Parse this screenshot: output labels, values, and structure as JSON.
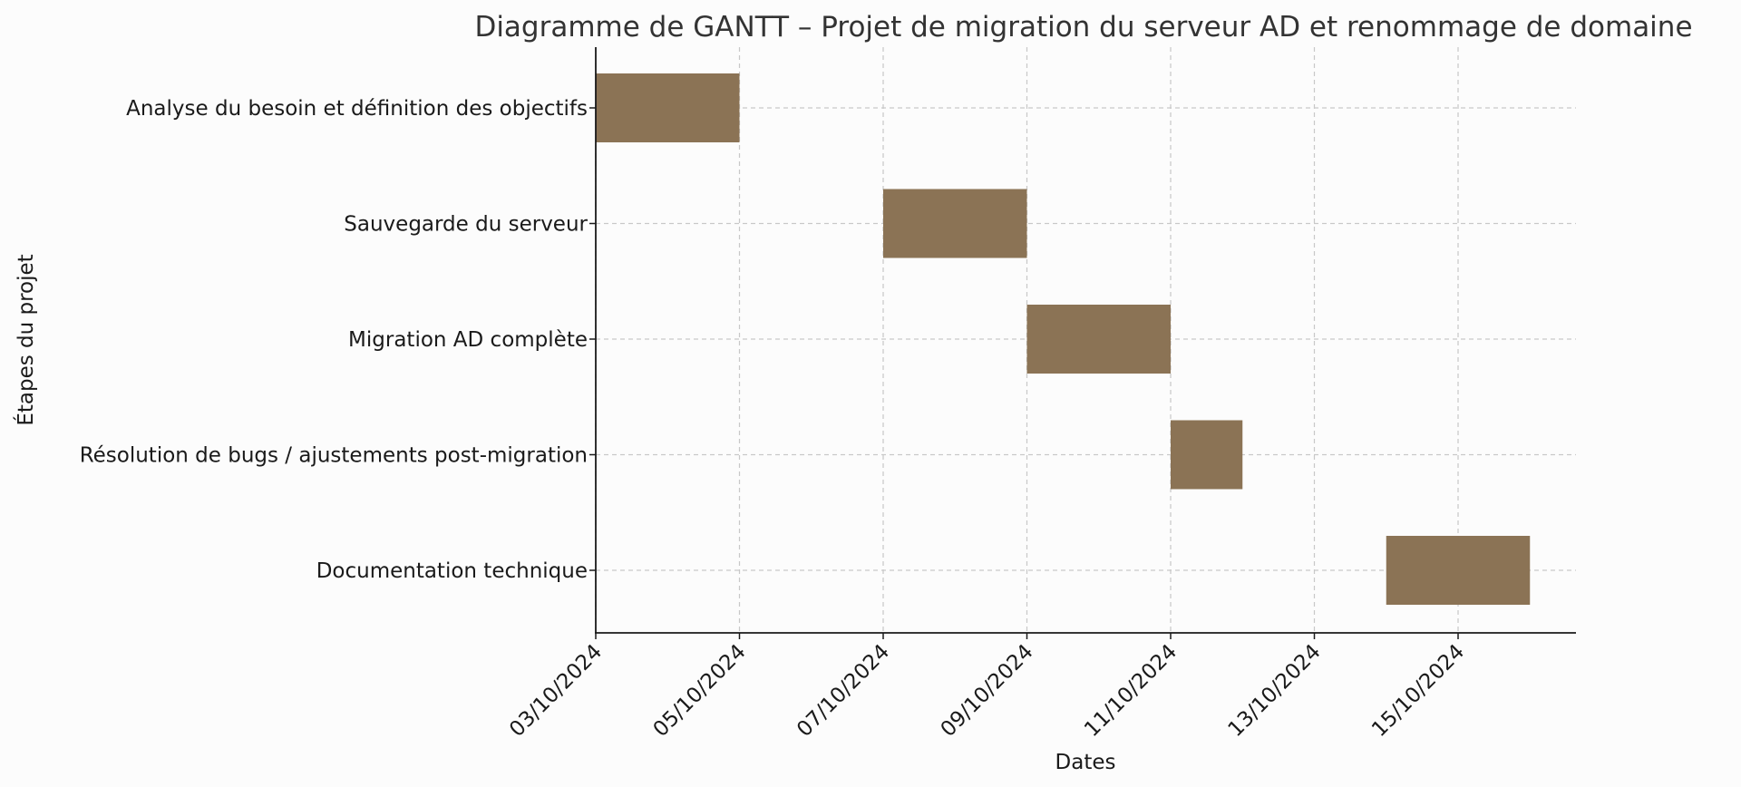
{
  "chart_data": {
    "type": "bar",
    "orientation": "horizontal",
    "title": "Diagramme de GANTT – Projet de migration du serveur AD et renommage de domaine",
    "xlabel": "Dates",
    "ylabel": "Étapes du projet",
    "categories": [
      "Analyse du besoin et définition des objectifs",
      "Sauvegarde du serveur",
      "Migration AD complète",
      "Résolution de bugs / ajustements post-migration",
      "Documentation technique"
    ],
    "tasks": [
      {
        "name": "Analyse du besoin et définition des objectifs",
        "start": "2024-10-03",
        "end": "2024-10-05"
      },
      {
        "name": "Sauvegarde du serveur",
        "start": "2024-10-07",
        "end": "2024-10-09"
      },
      {
        "name": "Migration AD complète",
        "start": "2024-10-09",
        "end": "2024-10-11"
      },
      {
        "name": "Résolution de bugs / ajustements post-migration",
        "start": "2024-10-11",
        "end": "2024-10-12"
      },
      {
        "name": "Documentation technique",
        "start": "2024-10-14",
        "end": "2024-10-16"
      }
    ],
    "x_ticks": [
      {
        "date": "2024-10-03",
        "label": "03/10/2024"
      },
      {
        "date": "2024-10-05",
        "label": "05/10/2024"
      },
      {
        "date": "2024-10-07",
        "label": "07/10/2024"
      },
      {
        "date": "2024-10-09",
        "label": "09/10/2024"
      },
      {
        "date": "2024-10-11",
        "label": "11/10/2024"
      },
      {
        "date": "2024-10-13",
        "label": "13/10/2024"
      },
      {
        "date": "2024-10-15",
        "label": "15/10/2024"
      }
    ],
    "xlim": [
      "2024-10-03",
      "2024-10-16"
    ],
    "grid": true,
    "bar_color": "#8b7355"
  }
}
